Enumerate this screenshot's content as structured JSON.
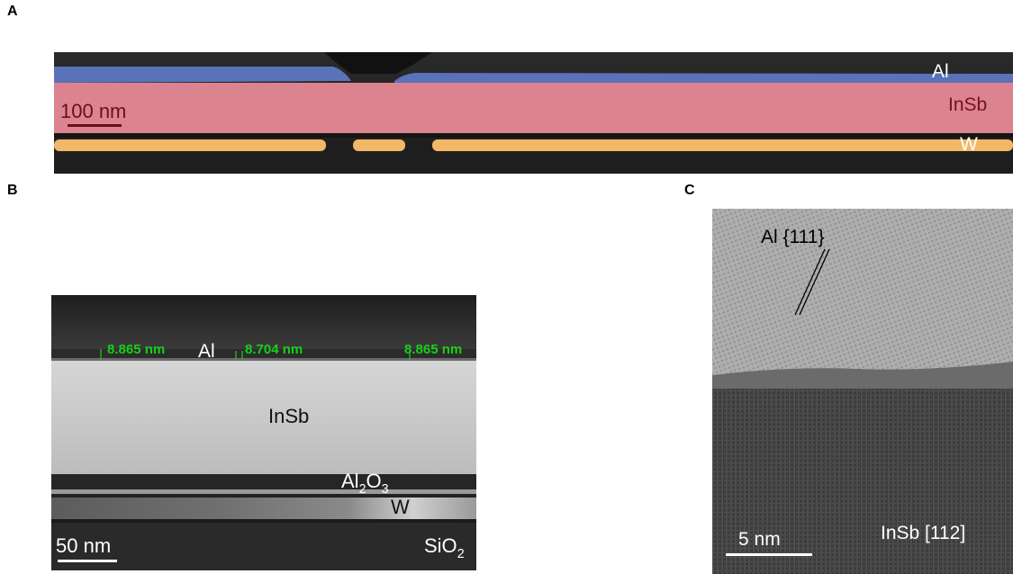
{
  "panels": {
    "a": {
      "letter": "A",
      "labels": {
        "al": "Al",
        "insb": "InSb",
        "w": "W"
      },
      "scale_bar": "100 nm"
    },
    "b": {
      "letter": "B",
      "labels": {
        "al": "Al",
        "insb": "InSb",
        "al2o3_main": "Al",
        "al2o3_sub1": "2",
        "al2o3_mid": "O",
        "al2o3_sub2": "3",
        "w": "W",
        "sio2_main": "SiO",
        "sio2_sub": "2"
      },
      "measurements": [
        "8.865 nm",
        "8.704 nm",
        "8.865 nm"
      ],
      "scale_bar": "50 nm"
    },
    "c": {
      "letter": "C",
      "labels": {
        "al_planes": "Al {111}",
        "insb_direction": "InSb [112]"
      },
      "scale_bar": "5 nm"
    }
  },
  "colors": {
    "al_overlay": "#5a72b8",
    "insb_overlay": "#d97d88",
    "w_overlay": "#f2b867",
    "measure_green": "#16d016"
  }
}
